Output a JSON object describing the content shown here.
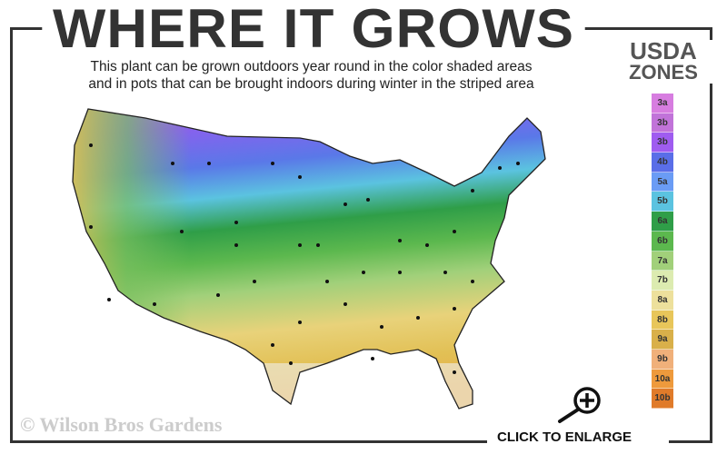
{
  "title": "WHERE IT GROWS",
  "subtitle": {
    "line1": "This plant can be grown outdoors year round in the color shaded areas",
    "line2": "and in pots that can be brought indoors during winter in the striped area"
  },
  "legend": {
    "title_line1": "USDA",
    "title_line2": "ZONES",
    "zones": [
      {
        "label": "3a",
        "color": "#d77de0"
      },
      {
        "label": "3b",
        "color": "#c173d9"
      },
      {
        "label": "3b",
        "color": "#9f5cf0"
      },
      {
        "label": "4b",
        "color": "#5a6ee8"
      },
      {
        "label": "5a",
        "color": "#6a9cf5"
      },
      {
        "label": "5b",
        "color": "#5bc3e0"
      },
      {
        "label": "6a",
        "color": "#2f9e48"
      },
      {
        "label": "6b",
        "color": "#5cb84e"
      },
      {
        "label": "7a",
        "color": "#a1d07a"
      },
      {
        "label": "7b",
        "color": "#dcebb0"
      },
      {
        "label": "8a",
        "color": "#ede09c"
      },
      {
        "label": "8b",
        "color": "#e8c65a"
      },
      {
        "label": "9a",
        "color": "#d9b04a"
      },
      {
        "label": "9b",
        "color": "#f0b07a"
      },
      {
        "label": "10a",
        "color": "#ee9a3c"
      },
      {
        "label": "10b",
        "color": "#e07b2a"
      }
    ]
  },
  "copyright": "© Wilson Bros Gardens",
  "enlarge_label": "CLICK TO ENLARGE",
  "icons": {
    "enlarge": "magnifier-plus-icon"
  }
}
